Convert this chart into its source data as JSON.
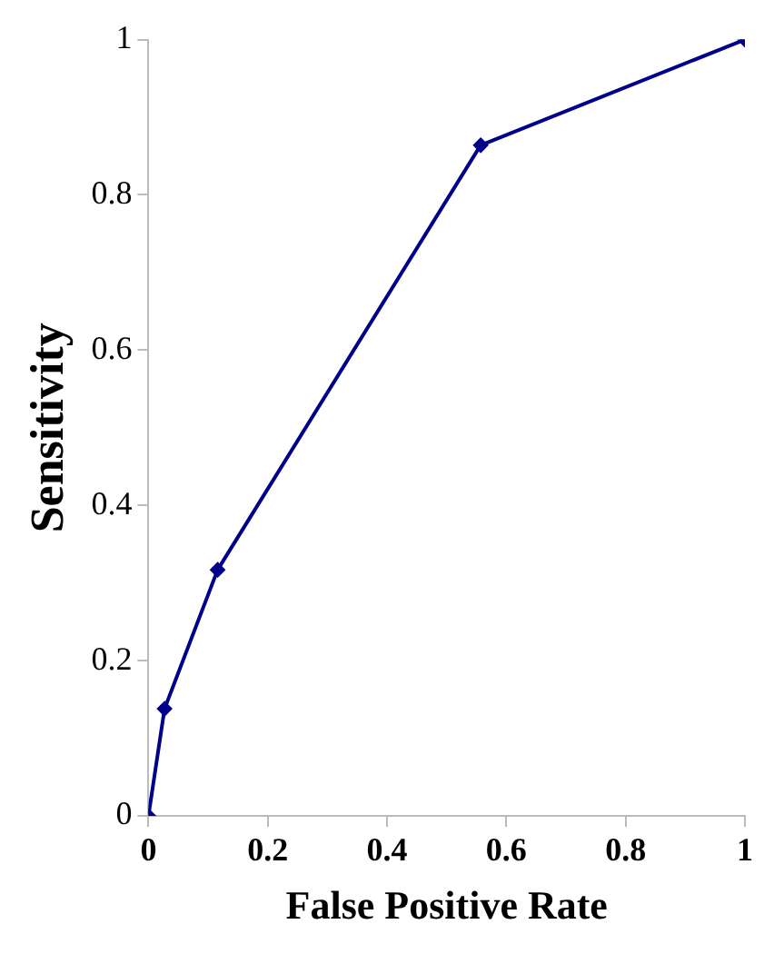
{
  "chart_data": {
    "type": "line",
    "xlabel": "False Positive Rate",
    "ylabel": "Sensitivity",
    "x": [
      0,
      0.027,
      0.116,
      0.557,
      1
    ],
    "series": [
      {
        "color": "#00008b",
        "values": [
          0,
          0.138,
          0.317,
          0.864,
          1
        ]
      }
    ],
    "xlim": [
      0,
      1
    ],
    "xticks": [
      0,
      0.2,
      0.4,
      0.6,
      0.8,
      1
    ],
    "ylim": [
      0,
      1
    ],
    "yticks": [
      0,
      0.2,
      0.4,
      0.6,
      0.8,
      1
    ],
    "grid": false,
    "legend": false,
    "marker": "diamond",
    "line_style": "solid"
  }
}
